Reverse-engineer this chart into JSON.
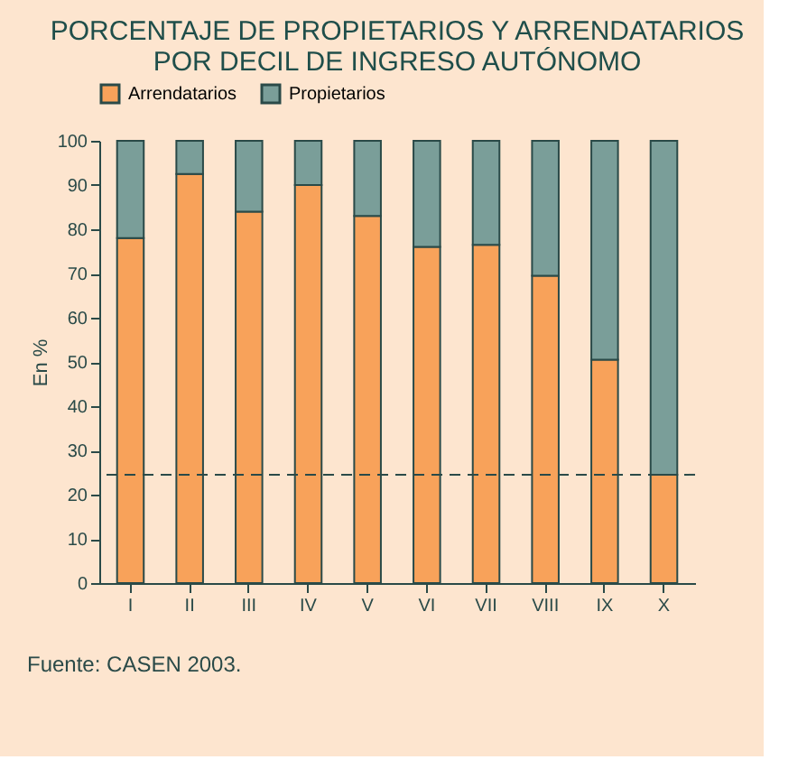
{
  "chart_data": {
    "type": "bar",
    "title": [
      "PORCENTAJE DE PROPIETARIOS Y ARRENDATARIOS",
      "POR DECIL DE INGRESO AUTÓNOMO"
    ],
    "ylabel": "En %",
    "categories": [
      "I",
      "II",
      "III",
      "IV",
      "V",
      "VI",
      "VII",
      "VIII",
      "IX",
      "X"
    ],
    "stacked": true,
    "series": [
      {
        "name": "Arrendatarios",
        "color": "#f8a25a",
        "values": [
          78,
          92.5,
          84,
          90,
          83,
          76,
          76.5,
          69.5,
          50.5,
          24.5
        ]
      },
      {
        "name": "Propietarios",
        "color": "#7a9e99",
        "values": [
          22,
          7.5,
          16,
          10,
          17,
          24,
          23.5,
          30.5,
          49.5,
          75.5
        ]
      }
    ],
    "ylim": [
      0,
      100
    ],
    "yticks": [
      0,
      10,
      20,
      30,
      40,
      50,
      60,
      70,
      80,
      90,
      100
    ],
    "grid": false,
    "legend": "top",
    "ref_lines": [
      {
        "axis": "y",
        "value": 24.5,
        "color": "#2a4a48",
        "line_style": "dashed"
      }
    ],
    "annotations": [
      "Fuente: CASEN 2003."
    ]
  }
}
